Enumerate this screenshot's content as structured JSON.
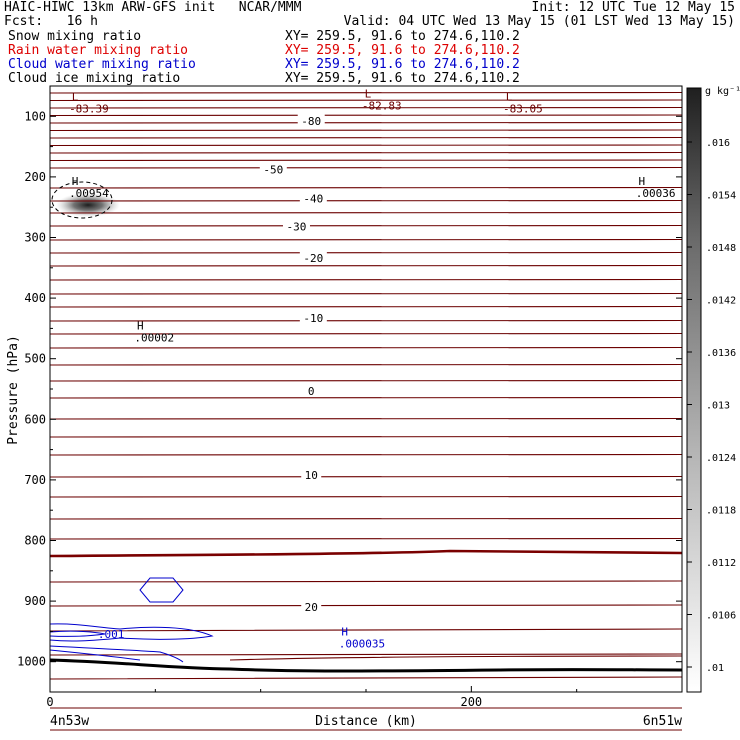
{
  "header": {
    "left_line1": "HAIC-HIWC 13km ARW-GFS init   NCAR/MMM",
    "right_line1": "Init: 12 UTC Tue 12 May 15",
    "left_line2": "Fcst:   16 h",
    "right_line2": "Valid: 04 UTC Wed 13 May 15 (01 LST Wed 13 May 15)",
    "field_rows": [
      {
        "name": "Snow mixing ratio",
        "xy": "XY= 259.5, 91.6 to 274.6,110.2",
        "color": "#000000"
      },
      {
        "name": "Rain water mixing ratio",
        "xy": "XY= 259.5, 91.6 to 274.6,110.2",
        "color": "#dd0000"
      },
      {
        "name": "Cloud water mixing ratio",
        "xy": "XY= 259.5, 91.6 to 274.6,110.2",
        "color": "#0000cc"
      },
      {
        "name": "Cloud ice mixing ratio",
        "xy": "XY= 259.5, 91.6 to 274.6,110.2",
        "color": "#000000"
      }
    ]
  },
  "chart_data": {
    "type": "contour cross-section",
    "xlabel": "Distance (km)",
    "ylabel": "Pressure (hPa)",
    "xlim": [
      0,
      300
    ],
    "ylim": [
      1050,
      50
    ],
    "x_ticks": [
      0,
      200
    ],
    "y_ticks": [
      100,
      200,
      300,
      400,
      500,
      600,
      700,
      800,
      900,
      1000
    ],
    "x_end_labels": {
      "left": "4n53w",
      "right": "6n51w"
    },
    "temperature_contours": {
      "color": "#6b0000",
      "thick_zero_color": "#7a0000",
      "labels": [
        {
          "text": "-80",
          "x": 124,
          "p": 108
        },
        {
          "text": "-50",
          "x": 106,
          "p": 188
        },
        {
          "text": "-40",
          "x": 125,
          "p": 236
        },
        {
          "text": "-30",
          "x": 117,
          "p": 282
        },
        {
          "text": "-20",
          "x": 125,
          "p": 334
        },
        {
          "text": "-10",
          "x": 125,
          "p": 433
        },
        {
          "text": "0",
          "x": 124,
          "p": 553
        },
        {
          "text": "10",
          "x": 124,
          "p": 692
        },
        {
          "text": "20",
          "x": 124,
          "p": 910
        }
      ]
    },
    "extrema_labels": [
      {
        "symbol": "L",
        "value": "-83.39",
        "x": 10,
        "p": 82,
        "color": "#6b0000"
      },
      {
        "symbol": "L",
        "value": "-82.83",
        "x": 149,
        "p": 77,
        "color": "#6b0000"
      },
      {
        "symbol": "L",
        "value": "-83.05",
        "x": 216,
        "p": 82,
        "color": "#6b0000"
      },
      {
        "symbol": "H",
        "value": ".00954",
        "x": 10,
        "p": 222,
        "color": "#000000"
      },
      {
        "symbol": "H",
        "value": ".00036",
        "x": 279,
        "p": 222,
        "color": "#000000"
      },
      {
        "symbol": "H",
        "value": ".00002",
        "x": 41,
        "p": 460,
        "color": "#000000"
      },
      {
        "symbol": "H",
        "value": ".000035",
        "x": 138,
        "p": 965,
        "color": "#0000cc"
      }
    ],
    "cloud_water_labels": [
      {
        "text": ".001",
        "x": 29,
        "p": 954,
        "color": "#0000cc"
      }
    ],
    "colorbar": {
      "units": "g kg⁻¹",
      "tick_labels": [
        ".016",
        ".0154",
        ".0148",
        ".0142",
        ".0136",
        ".013",
        ".0124",
        ".0118",
        ".0112",
        ".0106",
        ".01"
      ]
    }
  }
}
